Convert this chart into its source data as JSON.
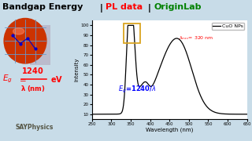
{
  "bg_color": "#c8dce8",
  "plot_bg": "white",
  "xlabel": "Wavelength (nm)",
  "ylabel": "Intensity",
  "xlim": [
    250,
    650
  ],
  "ylim": [
    5,
    105
  ],
  "yticks": [
    10,
    20,
    30,
    40,
    50,
    60,
    70,
    80,
    90,
    100
  ],
  "xticks": [
    250,
    300,
    350,
    400,
    450,
    500,
    550,
    600,
    650
  ],
  "legend_label": "CuO NPs",
  "exc_color": "red",
  "formula_color": "blue",
  "rect_color": "#DAA520",
  "line_color": "black",
  "title_black": "Bandgap Energy",
  "title_sep1": " | ",
  "title_red": "PL data",
  "title_sep2": " |",
  "title_green": "OriginLab",
  "say_color": "#555544"
}
